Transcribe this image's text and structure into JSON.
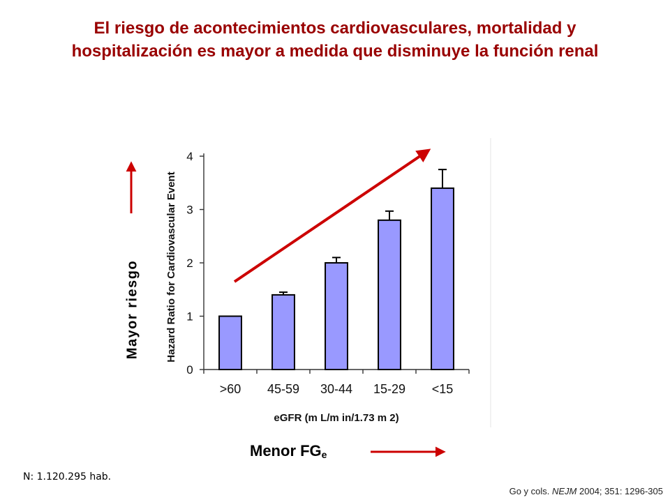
{
  "title": {
    "line1": "El riesgo de acontecimientos cardiovasculares, mortalidad y",
    "line2": "hospitalización es mayor a medida que disminuye la función renal"
  },
  "labels": {
    "risk": "Mayor riesgo",
    "gfr_main": "Menor FG",
    "gfr_sub": "e"
  },
  "footnote": "N: 1.120.295 hab.",
  "citation": {
    "authors": "Go y cols. ",
    "journal": "NEJM",
    "rest": " 2004; 351: 1296-305"
  },
  "colors": {
    "title": "#990000",
    "bar_fill": "#9999ff",
    "arrow": "#cc0000"
  },
  "chart_data": {
    "type": "bar",
    "categories": [
      ">60",
      "45-59",
      "30-44",
      "15-29",
      "<15"
    ],
    "values": [
      1.0,
      1.4,
      2.0,
      2.8,
      3.4
    ],
    "error_upper": [
      1.0,
      1.45,
      2.1,
      2.97,
      3.75
    ],
    "xlabel": "eGFR (m L/m in/1.73 m 2)",
    "ylabel": "Hazard Ratio for Cardiovascular Event",
    "ylim": [
      0,
      4
    ],
    "yticks": [
      0,
      1,
      2,
      3,
      4
    ],
    "grid": false,
    "legend": "none"
  }
}
